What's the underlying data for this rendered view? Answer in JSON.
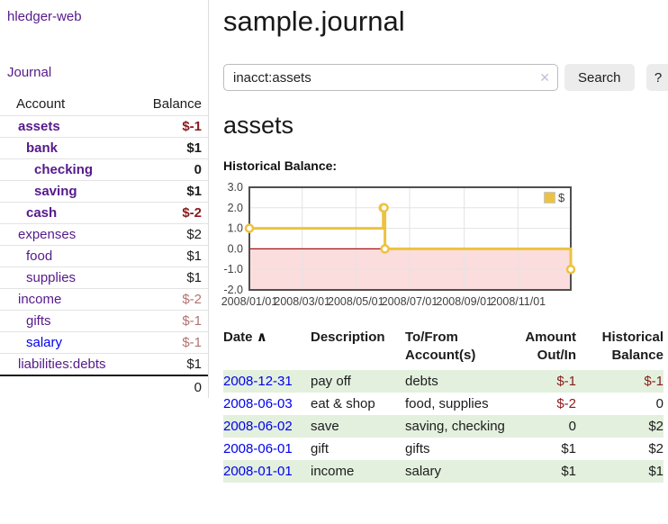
{
  "app": {
    "brand": "hledger-web",
    "nav": {
      "journal": "Journal"
    }
  },
  "sidebar": {
    "header": {
      "account": "Account",
      "balance": "Balance"
    },
    "accounts": [
      {
        "name": "assets",
        "balance": "$-1",
        "indent": 1
      },
      {
        "name": "bank",
        "balance": "$1",
        "indent": 2
      },
      {
        "name": "checking",
        "balance": "0",
        "indent": 3
      },
      {
        "name": "saving",
        "balance": "$1",
        "indent": 3
      },
      {
        "name": "cash",
        "balance": "$-2",
        "indent": 2
      },
      {
        "name": "expenses",
        "balance": "$2",
        "indent": 1
      },
      {
        "name": "food",
        "balance": "$1",
        "indent": 2
      },
      {
        "name": "supplies",
        "balance": "$1",
        "indent": 2
      },
      {
        "name": "income",
        "balance": "$-2",
        "indent": 1
      },
      {
        "name": "gifts",
        "balance": "$-1",
        "indent": 2
      },
      {
        "name": "salary",
        "balance": "$-1",
        "indent": 2
      },
      {
        "name": "liabilities:debts",
        "balance": "$1",
        "indent": 1
      }
    ],
    "total": "0"
  },
  "header": {
    "title": "sample.journal"
  },
  "search": {
    "value": "inacct:assets",
    "clear_icon": "✕",
    "search_label": "Search",
    "help_label": "?"
  },
  "main": {
    "account_title": "assets",
    "chart_heading": "Historical Balance:"
  },
  "chart_data": {
    "type": "line",
    "title": "Historical Balance",
    "step": true,
    "series": [
      {
        "name": "$",
        "color": "#edc240",
        "points": [
          [
            "2008-01-01",
            1
          ],
          [
            "2008-06-01",
            2
          ],
          [
            "2008-06-02",
            2
          ],
          [
            "2008-06-03",
            0
          ],
          [
            "2008-12-31",
            -1
          ]
        ]
      }
    ],
    "x_range": [
      "2008-01-01",
      "2008-12-31"
    ],
    "x_ticks": [
      "2008/01/01",
      "2008/03/01",
      "2008/05/01",
      "2008/07/01",
      "2008/09/01",
      "2008/11/01"
    ],
    "y_ticks": [
      3,
      2,
      1,
      0,
      -1,
      -2
    ],
    "ylim": [
      -2,
      3
    ],
    "grid": true,
    "negative_region_color": "#fbdddd",
    "zero_line_color": "#aa1111",
    "legend_position": "top-right",
    "legend_label": "$"
  },
  "register": {
    "headers": {
      "date": "Date",
      "description": "Description",
      "account": "To/From Account(s)",
      "amount": "Amount Out/In",
      "balance": "Historical Balance"
    },
    "sort_icon": "∧",
    "rows": [
      {
        "date": "2008-12-31",
        "description": "pay off",
        "accounts": "debts",
        "amount": "$-1",
        "balance": "$-1"
      },
      {
        "date": "2008-06-03",
        "description": "eat & shop",
        "accounts": "food, supplies",
        "amount": "$-2",
        "balance": "0"
      },
      {
        "date": "2008-06-02",
        "description": "save",
        "accounts": "saving, checking",
        "amount": "0",
        "balance": "$2"
      },
      {
        "date": "2008-06-01",
        "description": "gift",
        "accounts": "gifts",
        "amount": "$1",
        "balance": "$2"
      },
      {
        "date": "2008-01-01",
        "description": "income",
        "accounts": "salary",
        "amount": "$1",
        "balance": "$1"
      }
    ]
  }
}
